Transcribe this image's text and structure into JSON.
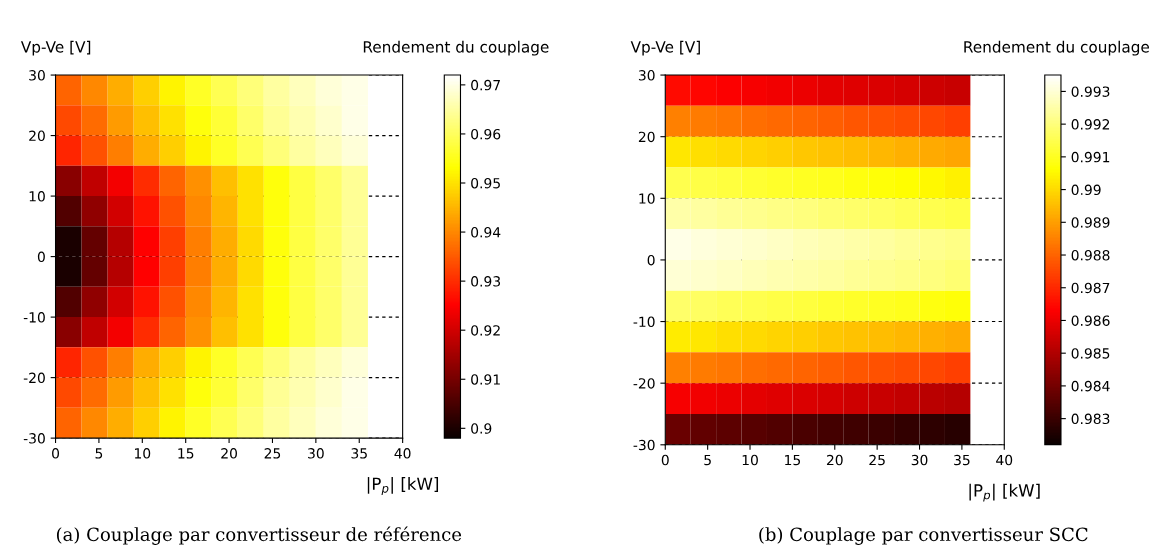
{
  "chart_data": [
    {
      "type": "heatmap",
      "ylabel": "Vp-Ve [V]",
      "xlabel": "|P$_{p}$| [kW]",
      "clabel": "Rendement du couplage",
      "annotations": [
        "(a) Couplage par convertisseur de référence"
      ],
      "x": [
        1.5,
        4.5,
        7.5,
        10.5,
        13.5,
        16.5,
        19.5,
        22.5,
        25.5,
        28.5,
        31.5,
        34.5
      ],
      "y": [
        27.5,
        22.5,
        17.5,
        12.5,
        7.5,
        2.5,
        -2.5,
        -7.5,
        -12.5,
        -17.5,
        -22.5,
        -27.5
      ],
      "xlim": [
        0,
        40
      ],
      "xticks": [
        0,
        5,
        10,
        15,
        20,
        25,
        30,
        35,
        40
      ],
      "ylim": [
        -30,
        30
      ],
      "yticks": [
        -30,
        -20,
        -10,
        0,
        10,
        20,
        30
      ],
      "grid": "y",
      "clim": [
        0.898,
        0.972
      ],
      "cticks": [
        0.9,
        0.91,
        0.92,
        0.93,
        0.94,
        0.95,
        0.96,
        0.97
      ],
      "cells": [
        [
          0.936,
          0.94,
          0.944,
          0.948,
          0.952,
          0.956,
          0.959,
          0.962,
          0.965,
          0.967,
          0.969,
          0.97
        ],
        [
          0.933,
          0.937,
          0.942,
          0.946,
          0.95,
          0.954,
          0.957,
          0.961,
          0.964,
          0.966,
          0.968,
          0.97
        ],
        [
          0.929,
          0.934,
          0.939,
          0.944,
          0.948,
          0.952,
          0.956,
          0.959,
          0.962,
          0.965,
          0.967,
          0.969
        ],
        [
          0.912,
          0.918,
          0.924,
          0.93,
          0.936,
          0.941,
          0.946,
          0.95,
          0.954,
          0.958,
          0.961,
          0.964
        ],
        [
          0.906,
          0.913,
          0.92,
          0.927,
          0.934,
          0.94,
          0.945,
          0.95,
          0.954,
          0.958,
          0.961,
          0.964
        ],
        [
          0.9,
          0.908,
          0.917,
          0.925,
          0.932,
          0.939,
          0.944,
          0.949,
          0.954,
          0.958,
          0.961,
          0.964
        ],
        [
          0.9,
          0.908,
          0.917,
          0.925,
          0.932,
          0.939,
          0.944,
          0.949,
          0.954,
          0.958,
          0.961,
          0.964
        ],
        [
          0.906,
          0.913,
          0.92,
          0.927,
          0.934,
          0.94,
          0.945,
          0.95,
          0.954,
          0.958,
          0.961,
          0.964
        ],
        [
          0.912,
          0.918,
          0.924,
          0.93,
          0.936,
          0.941,
          0.946,
          0.95,
          0.954,
          0.958,
          0.961,
          0.964
        ],
        [
          0.929,
          0.934,
          0.939,
          0.944,
          0.948,
          0.952,
          0.956,
          0.959,
          0.962,
          0.965,
          0.967,
          0.969
        ],
        [
          0.933,
          0.937,
          0.942,
          0.946,
          0.95,
          0.954,
          0.957,
          0.961,
          0.964,
          0.966,
          0.968,
          0.97
        ],
        [
          0.936,
          0.94,
          0.944,
          0.948,
          0.952,
          0.956,
          0.959,
          0.962,
          0.965,
          0.967,
          0.969,
          0.97
        ]
      ]
    },
    {
      "type": "heatmap",
      "ylabel": "Vp-Ve [V]",
      "xlabel": "|P$_{p}$| [kW]",
      "clabel": "Rendement du couplage",
      "annotations": [
        "(b) Couplage par convertisseur SCC"
      ],
      "x": [
        1.5,
        4.5,
        7.5,
        10.5,
        13.5,
        16.5,
        19.5,
        22.5,
        25.5,
        28.5,
        31.5,
        34.5
      ],
      "y": [
        27.5,
        22.5,
        17.5,
        12.5,
        7.5,
        2.5,
        -2.5,
        -7.5,
        -12.5,
        -17.5,
        -22.5,
        -27.5
      ],
      "xlim": [
        0,
        40
      ],
      "xticks": [
        0,
        5,
        10,
        15,
        20,
        25,
        30,
        35,
        40
      ],
      "ylim": [
        -30,
        30
      ],
      "yticks": [
        -30,
        -20,
        -10,
        0,
        10,
        20,
        30
      ],
      "grid": "y",
      "clim": [
        0.9822,
        0.9935
      ],
      "cticks": [
        0.983,
        0.984,
        0.985,
        0.986,
        0.987,
        0.988,
        0.989,
        0.99,
        0.991,
        0.992,
        0.993
      ],
      "cells": [
        [
          0.9865,
          0.9864,
          0.9863,
          0.9862,
          0.9861,
          0.986,
          0.9859,
          0.9858,
          0.9857,
          0.9856,
          0.9855,
          0.9854
        ],
        [
          0.9885,
          0.9884,
          0.9883,
          0.9882,
          0.9881,
          0.988,
          0.9879,
          0.9878,
          0.9877,
          0.9876,
          0.9875,
          0.9874
        ],
        [
          0.9902,
          0.9901,
          0.99,
          0.9899,
          0.9898,
          0.9897,
          0.9896,
          0.9895,
          0.9894,
          0.9893,
          0.9892,
          0.9891
        ],
        [
          0.9915,
          0.9914,
          0.9913,
          0.9912,
          0.9911,
          0.991,
          0.9909,
          0.9908,
          0.9907,
          0.9906,
          0.9905,
          0.9904
        ],
        [
          0.9925,
          0.9924,
          0.9923,
          0.9922,
          0.9921,
          0.992,
          0.9919,
          0.9918,
          0.9917,
          0.9916,
          0.9915,
          0.9914
        ],
        [
          0.9932,
          0.9931,
          0.993,
          0.9929,
          0.9928,
          0.9927,
          0.9926,
          0.9925,
          0.9924,
          0.9923,
          0.9922,
          0.9921
        ],
        [
          0.993,
          0.9929,
          0.9928,
          0.9927,
          0.9926,
          0.9925,
          0.9924,
          0.9923,
          0.9922,
          0.9921,
          0.992,
          0.9919
        ],
        [
          0.9918,
          0.9917,
          0.9916,
          0.9915,
          0.9914,
          0.9913,
          0.9912,
          0.9911,
          0.991,
          0.9909,
          0.9908,
          0.9907
        ],
        [
          0.9903,
          0.9902,
          0.9901,
          0.99,
          0.9899,
          0.9898,
          0.9897,
          0.9896,
          0.9895,
          0.9894,
          0.9893,
          0.9892
        ],
        [
          0.9885,
          0.9884,
          0.9883,
          0.9882,
          0.9881,
          0.988,
          0.9879,
          0.9878,
          0.9877,
          0.9876,
          0.9875,
          0.9874
        ],
        [
          0.9862,
          0.9861,
          0.986,
          0.9859,
          0.9858,
          0.9857,
          0.9856,
          0.9855,
          0.9854,
          0.9853,
          0.9852,
          0.9851
        ],
        [
          0.9838,
          0.9837,
          0.9836,
          0.9835,
          0.9834,
          0.9833,
          0.9832,
          0.9831,
          0.983,
          0.9829,
          0.9828,
          0.9827
        ]
      ]
    }
  ]
}
